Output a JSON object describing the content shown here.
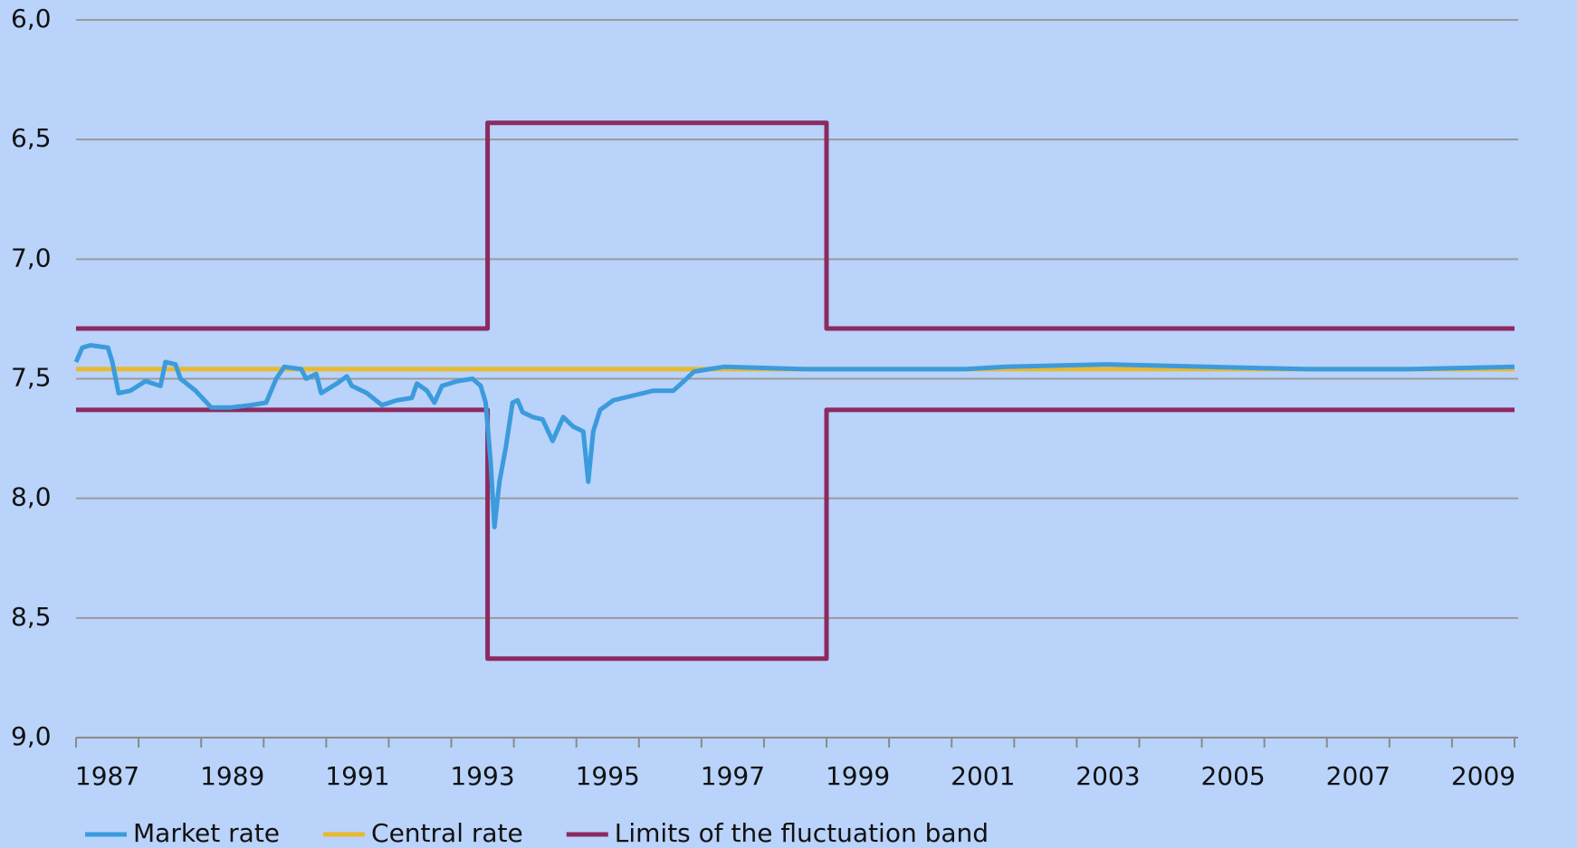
{
  "chart_data": {
    "type": "line",
    "ylim": [
      6.0,
      9.0
    ],
    "y_inverted": true,
    "yticks": [
      {
        "value": 6.0,
        "label": "6,0"
      },
      {
        "value": 6.5,
        "label": "6,5"
      },
      {
        "value": 7.0,
        "label": "7,0"
      },
      {
        "value": 7.5,
        "label": "7,5"
      },
      {
        "value": 8.0,
        "label": "8,0"
      },
      {
        "value": 8.5,
        "label": "8,5"
      },
      {
        "value": 9.0,
        "label": "9,0"
      }
    ],
    "grid": true,
    "xlim": [
      1987,
      2010
    ],
    "xticks": [
      1987,
      1988,
      1989,
      1990,
      1991,
      1992,
      1993,
      1994,
      1995,
      1996,
      1997,
      1998,
      1999,
      2000,
      2001,
      2002,
      2003,
      2004,
      2005,
      2006,
      2007,
      2008,
      2009,
      2010
    ],
    "legend": "bottom",
    "series": [
      {
        "name": "Market rate",
        "color": "#3b9bdc",
        "x": [
          1987.0,
          1987.1,
          1987.23,
          1987.51,
          1987.58,
          1987.68,
          1987.87,
          1988.11,
          1988.35,
          1988.43,
          1988.59,
          1988.67,
          1988.91,
          1989.16,
          1989.48,
          1989.8,
          1990.04,
          1990.2,
          1990.33,
          1990.6,
          1990.68,
          1990.84,
          1990.92,
          1991.17,
          1991.33,
          1991.41,
          1991.65,
          1991.89,
          1992.13,
          1992.37,
          1992.45,
          1992.61,
          1992.73,
          1992.85,
          1993.1,
          1993.34,
          1993.47,
          1993.55,
          1993.63,
          1993.69,
          1993.77,
          1993.87,
          1993.98,
          1994.06,
          1994.14,
          1994.3,
          1994.46,
          1994.62,
          1994.79,
          1994.95,
          1995.11,
          1995.19,
          1995.27,
          1995.38,
          1995.59,
          1995.91,
          1996.23,
          1996.55,
          1996.72,
          1996.88,
          1997.12,
          1997.36,
          1998.65,
          2000.25,
          2001.22,
          2001.86,
          2003.47,
          2005.08,
          2006.69,
          2008.3,
          2010.0
        ],
        "values": [
          7.43,
          7.37,
          7.36,
          7.37,
          7.43,
          7.56,
          7.55,
          7.51,
          7.53,
          7.43,
          7.44,
          7.5,
          7.55,
          7.62,
          7.62,
          7.61,
          7.6,
          7.5,
          7.45,
          7.46,
          7.5,
          7.48,
          7.56,
          7.52,
          7.49,
          7.53,
          7.56,
          7.61,
          7.59,
          7.58,
          7.52,
          7.55,
          7.6,
          7.53,
          7.51,
          7.5,
          7.53,
          7.6,
          7.85,
          8.12,
          7.93,
          7.79,
          7.6,
          7.59,
          7.64,
          7.66,
          7.67,
          7.76,
          7.66,
          7.7,
          7.72,
          7.93,
          7.72,
          7.63,
          7.59,
          7.57,
          7.55,
          7.55,
          7.51,
          7.47,
          7.46,
          7.45,
          7.46,
          7.46,
          7.46,
          7.45,
          7.44,
          7.45,
          7.46,
          7.46,
          7.45
        ]
      },
      {
        "name": "Central rate",
        "color": "#e9b92f",
        "x": [
          1987,
          2010
        ],
        "values": [
          7.46,
          7.46
        ]
      },
      {
        "name": "Limits of the fluctuation band",
        "color": "#8c2a5f",
        "x": [
          1987,
          1993.58,
          1993.58,
          1999.0,
          1999.0,
          2010,
          null,
          1987,
          1993.58,
          1993.58,
          1999.0,
          1999.0,
          2010
        ],
        "values": [
          7.29,
          7.29,
          6.43,
          6.43,
          7.29,
          7.29,
          null,
          7.63,
          7.63,
          8.67,
          8.67,
          7.63,
          7.63
        ]
      }
    ]
  }
}
